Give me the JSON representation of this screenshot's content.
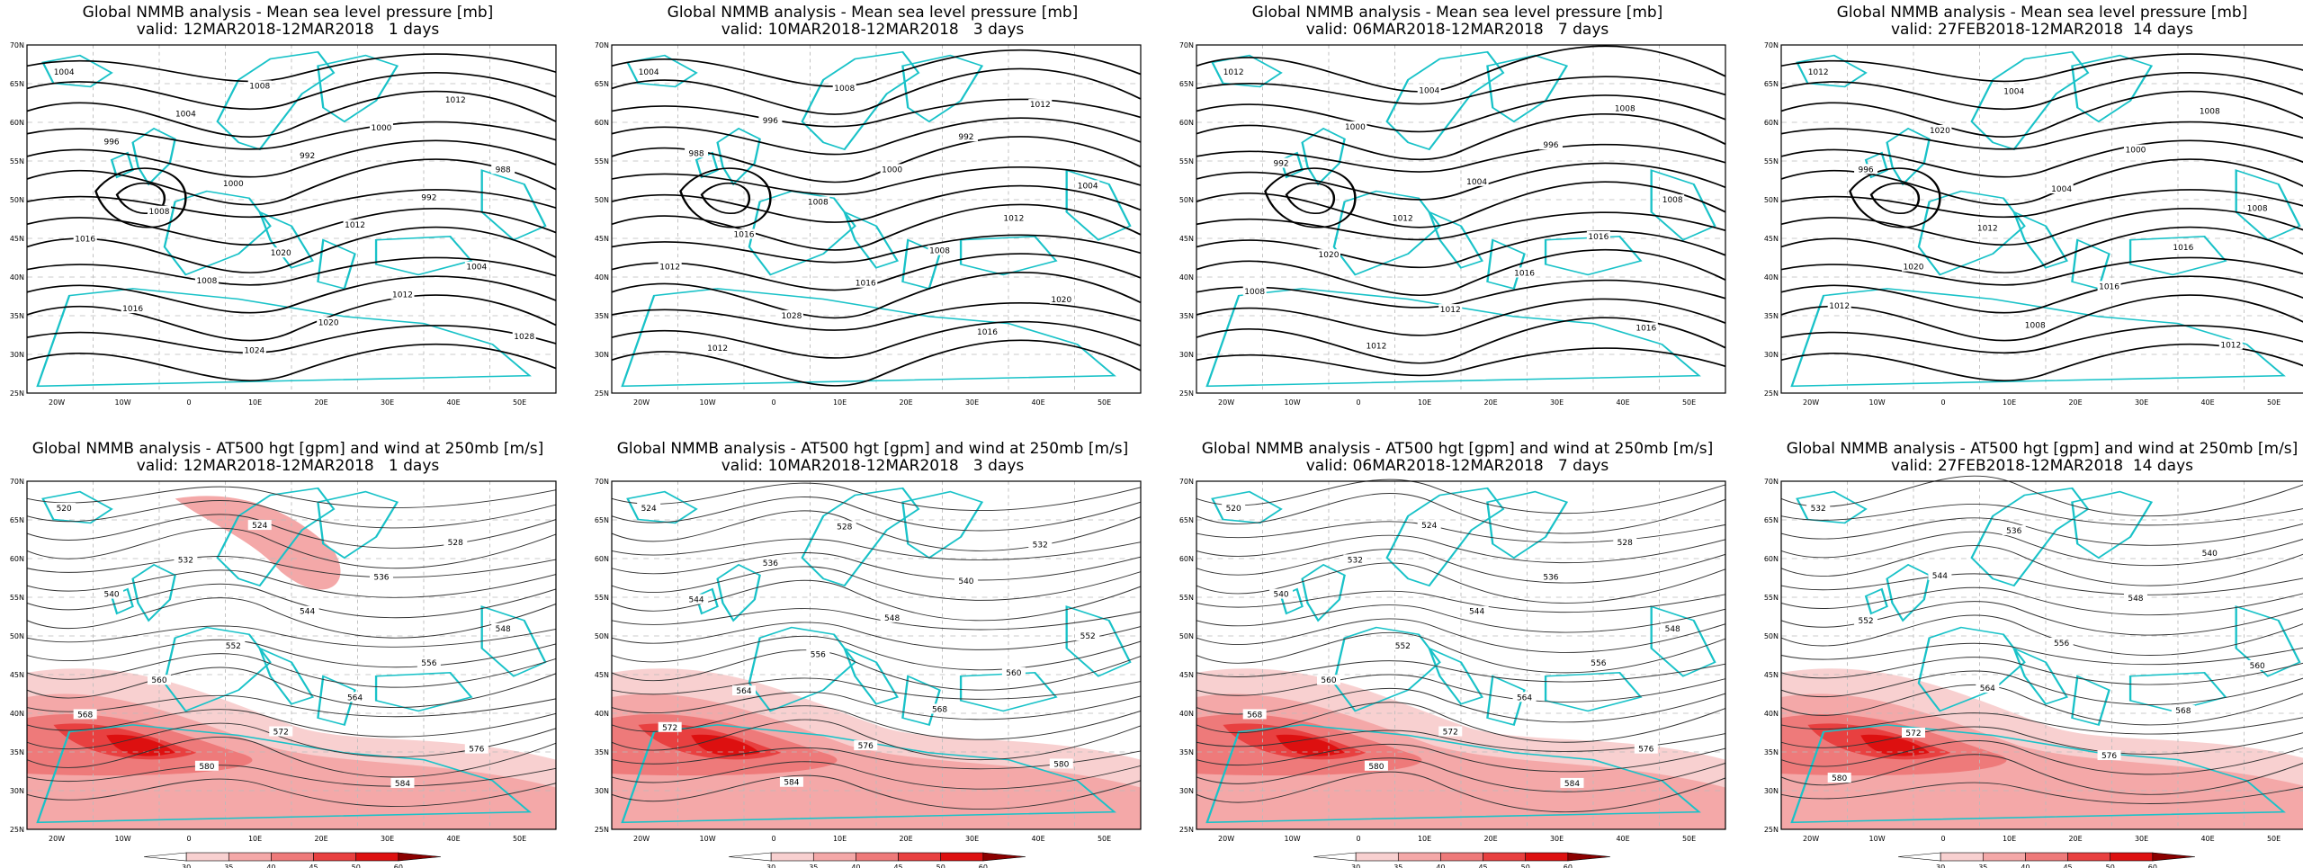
{
  "panels": [
    {
      "title": "Global NMMB analysis - Mean sea level pressure [mb]",
      "valid": "valid: 12MAR2018-12MAR2018   1 days",
      "kind": "mslp"
    },
    {
      "title": "Global NMMB analysis - Mean sea level pressure [mb]",
      "valid": "valid: 10MAR2018-12MAR2018   3 days",
      "kind": "mslp"
    },
    {
      "title": "Global NMMB analysis - Mean sea level pressure [mb]",
      "valid": "valid: 06MAR2018-12MAR2018   7 days",
      "kind": "mslp"
    },
    {
      "title": "Global NMMB analysis - Mean sea level pressure [mb]",
      "valid": "valid: 27FEB2018-12MAR2018  14 days",
      "kind": "mslp"
    },
    {
      "title": "Global NMMB analysis - AT500 hgt [gpm] and wind at 250mb [m/s]",
      "valid": "valid: 12MAR2018-12MAR2018   1 days",
      "kind": "z500"
    },
    {
      "title": "Global NMMB analysis - AT500 hgt [gpm] and wind at 250mb [m/s]",
      "valid": "valid: 10MAR2018-12MAR2018   3 days",
      "kind": "z500"
    },
    {
      "title": "Global NMMB analysis - AT500 hgt [gpm] and wind at 250mb [m/s]",
      "valid": "valid: 06MAR2018-12MAR2018   7 days",
      "kind": "z500"
    },
    {
      "title": "Global NMMB analysis - AT500 hgt [gpm] and wind at 250mb [m/s]",
      "valid": "valid: 27FEB2018-12MAR2018  14 days",
      "kind": "z500"
    }
  ],
  "lon_ticks": [
    "20W",
    "10W",
    "0",
    "10E",
    "20E",
    "30E",
    "40E",
    "50E"
  ],
  "lat_ticks": [
    "70N",
    "65N",
    "60N",
    "55N",
    "50N",
    "45N",
    "40N",
    "35N",
    "30N",
    "25N"
  ],
  "colorbar_ticks": [
    "30",
    "35",
    "40",
    "45",
    "50",
    "60"
  ],
  "colorbar_colors": [
    "#ffffff",
    "#f8d0d0",
    "#f4a8a8",
    "#ee7a7a",
    "#e84040",
    "#dd1010",
    "#8b0000"
  ],
  "mslp_labels": [
    [
      "1004",
      "1008",
      "1012",
      "1004",
      "1000",
      "996",
      "992",
      "988",
      "1000",
      "992",
      "1008",
      "1012",
      "1016",
      "1020",
      "1004",
      "1008",
      "1012",
      "1016",
      "1020",
      "1028",
      "1024"
    ],
    [
      "1004",
      "1008",
      "1012",
      "996",
      "992",
      "988",
      "1000",
      "1004",
      "1008",
      "1012",
      "1016",
      "1008",
      "1012",
      "1016",
      "1020",
      "1028",
      "1016",
      "1012"
    ],
    [
      "1012",
      "1004",
      "1008",
      "1000",
      "996",
      "992",
      "1004",
      "1008",
      "1012",
      "1016",
      "1020",
      "1016",
      "1008",
      "1012",
      "1016",
      "1012"
    ],
    [
      "1012",
      "1004",
      "1008",
      "1020",
      "1000",
      "996",
      "1004",
      "1008",
      "1012",
      "1016",
      "1020",
      "1016",
      "1012",
      "1008",
      "1012"
    ]
  ],
  "z500_labels": [
    [
      "520",
      "524",
      "528",
      "532",
      "536",
      "540",
      "544",
      "548",
      "552",
      "556",
      "560",
      "564",
      "568",
      "572",
      "576",
      "580",
      "584"
    ],
    [
      "524",
      "528",
      "532",
      "536",
      "540",
      "544",
      "548",
      "552",
      "556",
      "560",
      "564",
      "568",
      "572",
      "576",
      "580",
      "584"
    ],
    [
      "520",
      "524",
      "528",
      "532",
      "536",
      "540",
      "544",
      "548",
      "552",
      "556",
      "560",
      "564",
      "568",
      "572",
      "576",
      "580",
      "584"
    ],
    [
      "532",
      "536",
      "540",
      "544",
      "548",
      "552",
      "556",
      "560",
      "564",
      "568",
      "572",
      "576",
      "580"
    ]
  ]
}
